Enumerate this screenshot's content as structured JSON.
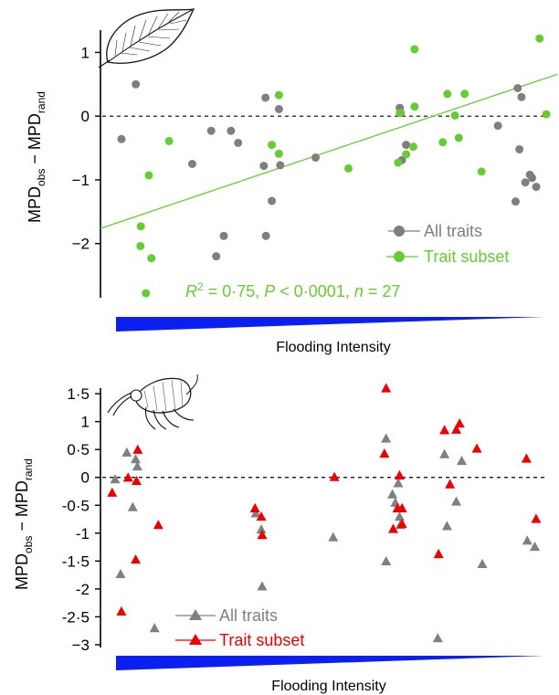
{
  "chart_data": [
    {
      "type": "scatter",
      "ylabel": "MPD_obs − MPD_rand",
      "ylabel_parts": {
        "main": "MPD",
        "sub_obs": "obs",
        "dash": " − ",
        "sub_rand": "rand"
      },
      "xlabel": "Flooding Intensity",
      "yticks": [
        1,
        0,
        -1,
        -2
      ],
      "ytick_labels": [
        "1",
        "0",
        "−1",
        "−2"
      ],
      "ylim": [
        -2.85,
        1.35
      ],
      "xlim": [
        0,
        1
      ],
      "reference_line_y": 0,
      "legend": [
        {
          "label": "All traits",
          "color": "#7f7f7f",
          "marker": "circle"
        },
        {
          "label": "Trait subset",
          "color": "#66cc33",
          "marker": "circle"
        }
      ],
      "annotation": {
        "r2": "0·75",
        "p": "0·0001",
        "n": "27"
      },
      "annotation_color": "#66cc33",
      "fit_line": {
        "x": [
          0,
          1
        ],
        "y": [
          -1.68,
          0.55
        ],
        "color": "#66cc33"
      },
      "series": [
        {
          "name": "All traits",
          "color": "#7f7f7f",
          "points": [
            {
              "x": 0.013,
              "y": -0.36
            },
            {
              "x": 0.047,
              "y": 0.5
            },
            {
              "x": 0.181,
              "y": -0.75
            },
            {
              "x": 0.226,
              "y": -0.23
            },
            {
              "x": 0.238,
              "y": -2.2
            },
            {
              "x": 0.256,
              "y": -1.88
            },
            {
              "x": 0.273,
              "y": -0.23
            },
            {
              "x": 0.29,
              "y": -0.42
            },
            {
              "x": 0.355,
              "y": 0.29
            },
            {
              "x": 0.356,
              "y": -1.88
            },
            {
              "x": 0.351,
              "y": -0.78
            },
            {
              "x": 0.37,
              "y": -1.33
            },
            {
              "x": 0.387,
              "y": 0.11
            },
            {
              "x": 0.39,
              "y": -0.77
            },
            {
              "x": 0.474,
              "y": -0.65
            },
            {
              "x": 0.674,
              "y": 0.13
            },
            {
              "x": 0.676,
              "y": 0.05
            },
            {
              "x": 0.689,
              "y": -0.45
            },
            {
              "x": 0.679,
              "y": -0.69
            },
            {
              "x": 0.907,
              "y": -0.15
            },
            {
              "x": 0.949,
              "y": -1.34
            },
            {
              "x": 0.954,
              "y": 0.44
            },
            {
              "x": 0.958,
              "y": -0.52
            },
            {
              "x": 0.963,
              "y": 0.3
            },
            {
              "x": 0.972,
              "y": -1.04
            },
            {
              "x": 0.983,
              "y": -0.92
            },
            {
              "x": 0.988,
              "y": -0.97
            },
            {
              "x": 0.998,
              "y": -1.11
            }
          ]
        },
        {
          "name": "Trait subset",
          "color": "#66cc33",
          "points": [
            {
              "x": 0.059,
              "y": -1.73
            },
            {
              "x": 0.058,
              "y": -2.04
            },
            {
              "x": 0.071,
              "y": -2.78
            },
            {
              "x": 0.078,
              "y": -0.93
            },
            {
              "x": 0.084,
              "y": -2.23
            },
            {
              "x": 0.126,
              "y": -0.39
            },
            {
              "x": 0.37,
              "y": -0.45
            },
            {
              "x": 0.387,
              "y": 0.33
            },
            {
              "x": 0.387,
              "y": -0.59
            },
            {
              "x": 0.552,
              "y": -0.82
            },
            {
              "x": 0.67,
              "y": -0.73
            },
            {
              "x": 0.674,
              "y": 0.05
            },
            {
              "x": 0.689,
              "y": -0.6
            },
            {
              "x": 0.709,
              "y": 0.15
            },
            {
              "x": 0.706,
              "y": -0.48
            },
            {
              "x": 0.709,
              "y": 1.05
            },
            {
              "x": 0.776,
              "y": -0.41
            },
            {
              "x": 0.787,
              "y": 0.35
            },
            {
              "x": 0.805,
              "y": 0.01
            },
            {
              "x": 0.814,
              "y": -0.34
            },
            {
              "x": 0.828,
              "y": 0.35
            },
            {
              "x": 0.868,
              "y": -0.87
            },
            {
              "x": 1.006,
              "y": 1.22
            },
            {
              "x": 1.022,
              "y": 0.03
            }
          ]
        }
      ]
    },
    {
      "type": "scatter",
      "ylabel": "MPD_obs − MPD_rand",
      "ylabel_parts": {
        "main": "MPD",
        "sub_obs": "obs",
        "dash": " − ",
        "sub_rand": "rand"
      },
      "xlabel": "Flooding Intensity",
      "yticks": [
        1.5,
        1,
        0.5,
        0,
        -0.5,
        -1,
        -1.5,
        -2,
        -2.5,
        -3
      ],
      "ytick_labels": [
        "1·5",
        "1",
        "0·5",
        "0",
        "-0·5",
        "-1",
        "-1·5",
        "-2",
        "-2·5",
        "−3"
      ],
      "ylim": [
        -3.05,
        1.6
      ],
      "xlim": [
        0,
        1
      ],
      "reference_line_y": 0,
      "legend": [
        {
          "label": "All traits",
          "color": "#808080",
          "marker": "triangle"
        },
        {
          "label": "Trait subset",
          "color": "#ee0000",
          "marker": "triangle"
        }
      ],
      "series": [
        {
          "name": "All traits",
          "color": "#808080",
          "points": [
            {
              "x": 0.0,
              "y": -0.03
            },
            {
              "x": 0.013,
              "y": -1.73
            },
            {
              "x": 0.028,
              "y": 0.45
            },
            {
              "x": 0.042,
              "y": -0.53
            },
            {
              "x": 0.049,
              "y": 0.33
            },
            {
              "x": 0.053,
              "y": 0.2
            },
            {
              "x": 0.094,
              "y": -2.7
            },
            {
              "x": 0.335,
              "y": -0.64
            },
            {
              "x": 0.348,
              "y": -0.93
            },
            {
              "x": 0.35,
              "y": -1.95
            },
            {
              "x": 0.519,
              "y": -1.07
            },
            {
              "x": 0.645,
              "y": 0.7
            },
            {
              "x": 0.645,
              "y": -1.5
            },
            {
              "x": 0.66,
              "y": -0.3
            },
            {
              "x": 0.667,
              "y": -0.45
            },
            {
              "x": 0.674,
              "y": -0.1
            },
            {
              "x": 0.677,
              "y": -0.7
            },
            {
              "x": 0.679,
              "y": -0.85
            },
            {
              "x": 0.768,
              "y": -2.88
            },
            {
              "x": 0.784,
              "y": 0.42
            },
            {
              "x": 0.79,
              "y": -0.87
            },
            {
              "x": 0.812,
              "y": -0.43
            },
            {
              "x": 0.825,
              "y": 0.3
            },
            {
              "x": 0.874,
              "y": -1.55
            },
            {
              "x": 0.981,
              "y": -1.13
            },
            {
              "x": 0.999,
              "y": -1.24
            }
          ]
        },
        {
          "name": "Trait subset",
          "color": "#ee0000",
          "points": [
            {
              "x": -0.007,
              "y": -0.27
            },
            {
              "x": 0.015,
              "y": -2.4
            },
            {
              "x": 0.031,
              "y": 0.0
            },
            {
              "x": 0.049,
              "y": -1.47
            },
            {
              "x": 0.051,
              "y": -0.06
            },
            {
              "x": 0.054,
              "y": 0.5
            },
            {
              "x": 0.103,
              "y": -0.85
            },
            {
              "x": 0.333,
              "y": -0.55
            },
            {
              "x": 0.348,
              "y": -0.7
            },
            {
              "x": 0.35,
              "y": -1.03
            },
            {
              "x": 0.522,
              "y": 0.01
            },
            {
              "x": 0.641,
              "y": 0.43
            },
            {
              "x": 0.645,
              "y": 1.6
            },
            {
              "x": 0.662,
              "y": -0.92
            },
            {
              "x": 0.672,
              "y": -0.55
            },
            {
              "x": 0.677,
              "y": 0.04
            },
            {
              "x": 0.683,
              "y": -0.55
            },
            {
              "x": 0.683,
              "y": -0.83
            },
            {
              "x": 0.77,
              "y": -1.37
            },
            {
              "x": 0.784,
              "y": 0.85
            },
            {
              "x": 0.797,
              "y": -0.12
            },
            {
              "x": 0.812,
              "y": 0.86
            },
            {
              "x": 0.82,
              "y": 0.97
            },
            {
              "x": 0.861,
              "y": 0.52
            },
            {
              "x": 0.979,
              "y": 0.34
            },
            {
              "x": 1.002,
              "y": -0.74
            }
          ]
        }
      ]
    }
  ],
  "icons": {
    "top": "leaf-icon",
    "bottom": "springtail-icon"
  },
  "colors": {
    "wedge": "#0a1ff0",
    "axis": "#000000"
  }
}
